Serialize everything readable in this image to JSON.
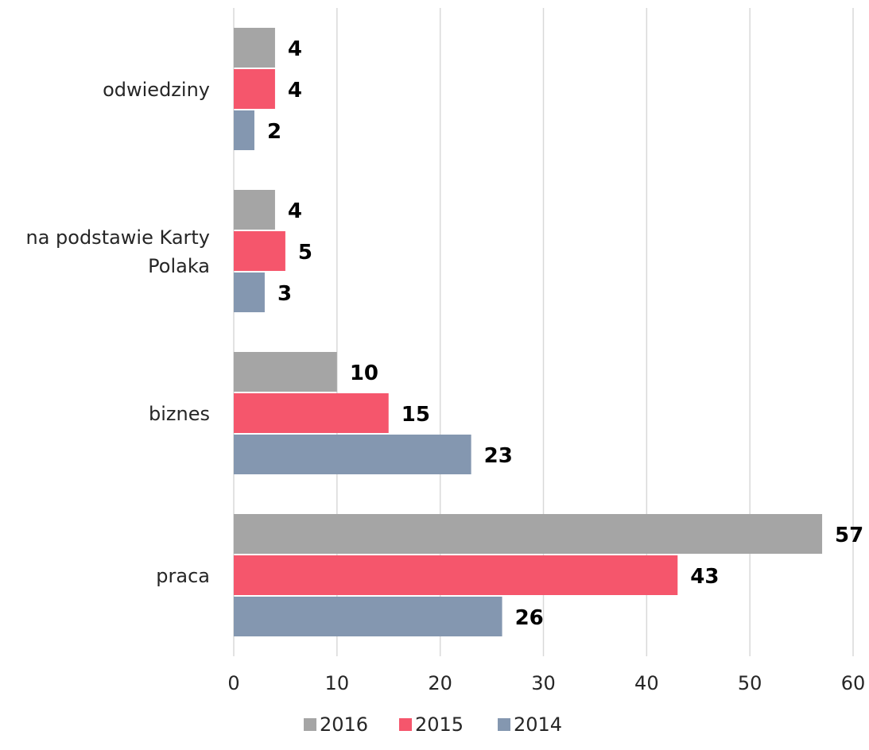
{
  "chart_data": {
    "type": "bar",
    "orientation": "horizontal",
    "title": "",
    "xlabel": "",
    "ylabel": "",
    "categories": [
      "odwiedziny",
      "na podstawie Karty Polaka",
      "biznes",
      "praca"
    ],
    "category_lines": [
      [
        "odwiedziny"
      ],
      [
        "na podstawie Karty",
        "Polaka"
      ],
      [
        "biznes"
      ],
      [
        "praca"
      ]
    ],
    "series": [
      {
        "name": "2016",
        "color": "#a5a5a5",
        "values": [
          4,
          4,
          10,
          57
        ]
      },
      {
        "name": "2015",
        "color": "#f5566c",
        "values": [
          4,
          5,
          15,
          43
        ]
      },
      {
        "name": "2014",
        "color": "#8497b0",
        "values": [
          2,
          3,
          23,
          26
        ]
      }
    ],
    "xlim": [
      0,
      60
    ],
    "xticks": [
      0,
      10,
      20,
      30,
      40,
      50,
      60
    ],
    "grid": true,
    "grid_color": "#d9d9d9",
    "data_labels": true,
    "legend_position": "bottom"
  }
}
